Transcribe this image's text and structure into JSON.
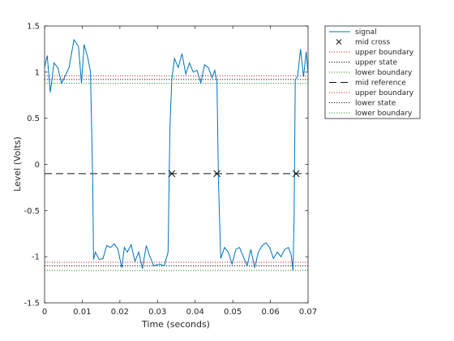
{
  "chart_data": {
    "type": "line",
    "xlabel": "Time (seconds)",
    "ylabel": "Level (Volts)",
    "xlim": [
      0,
      0.07
    ],
    "ylim": [
      -1.5,
      1.5
    ],
    "xticks": [
      0,
      0.01,
      0.02,
      0.03,
      0.04,
      0.05,
      0.06,
      0.07
    ],
    "xtick_labels": [
      "0",
      "0.01",
      "0.02",
      "0.03",
      "0.04",
      "0.05",
      "0.06",
      "0.07"
    ],
    "yticks": [
      -1.5,
      -1,
      -0.5,
      0,
      0.5,
      1,
      1.5
    ],
    "ytick_labels": [
      "-1.5",
      "-1",
      "-0.5",
      "0",
      "0.5",
      "1",
      "1.5"
    ],
    "grid": false,
    "legend_position": "outside-right",
    "colors": {
      "signal": "#0072bd",
      "upper_boundary": "#d62728",
      "upper_state": "#111111",
      "mid_reference": "#111111",
      "lower_boundary": "#2ca02c",
      "lower_state": "#111111"
    },
    "series": [
      {
        "name": "signal",
        "style": "solid",
        "x": [
          0,
          0.001,
          0.002,
          0.003,
          0.004,
          0.005,
          0.006,
          0.007,
          0.008,
          0.009,
          0.01,
          0.011,
          0.012,
          0.013,
          0.014,
          0.015,
          0.016,
          0.017,
          0.018,
          0.019,
          0.02,
          0.021,
          0.022,
          0.023,
          0.024,
          0.025,
          0.026,
          0.027,
          0.028,
          0.029,
          0.03,
          0.031,
          0.032,
          0.033,
          0.034,
          0.035,
          0.036,
          0.037,
          0.038,
          0.039,
          0.04,
          0.041,
          0.042,
          0.043,
          0.044,
          0.045,
          0.046,
          0.047,
          0.048,
          0.049,
          0.05,
          0.051,
          0.052,
          0.053,
          0.054,
          0.055,
          0.056,
          0.057,
          0.058,
          0.059,
          0.06,
          0.061,
          0.062,
          0.063,
          0.064,
          0.065,
          0.066,
          0.067,
          0.068,
          0.069,
          0.07
        ],
        "y": [
          1.0,
          1.18,
          0.8,
          1.1,
          1.05,
          0.88,
          1.0,
          1.1,
          1.35,
          1.28,
          0.88,
          1.3,
          1.15,
          -1.05,
          -0.95,
          -1.02,
          -1.0,
          -0.88,
          -0.9,
          -0.88,
          -1.1,
          -0.92,
          -0.95,
          -0.85,
          -1.05,
          -0.98,
          -1.12,
          -0.92,
          -1.0,
          -1.08,
          -1.1,
          -1.05,
          0.45,
          0.95,
          1.15,
          1.05,
          1.2,
          0.98,
          1.0,
          1.02,
          0.9,
          1.08,
          1.05,
          0.95,
          1.02,
          -0.8,
          -1.0,
          -1.05,
          -0.9,
          -0.95,
          -1.02,
          -0.92,
          -0.9,
          -1.0,
          -1.08,
          -0.98,
          -1.1,
          -0.95,
          -0.9,
          -0.85,
          -1.15,
          -1.05,
          0.95,
          0.92,
          1.2,
          1.05,
          0.96,
          0.98,
          1.0,
          0.98,
          0.97
        ],
        "curve_x": [
          0,
          0.0007,
          0.0015,
          0.0025,
          0.0035,
          0.0045,
          0.0055,
          0.0065,
          0.0078,
          0.009,
          0.0098,
          0.0105,
          0.0115,
          0.0122,
          0.0128,
          0.013,
          0.0135,
          0.0145,
          0.0155,
          0.0165,
          0.0175,
          0.0185,
          0.0195,
          0.0205,
          0.0212,
          0.022,
          0.023,
          0.024,
          0.025,
          0.026,
          0.027,
          0.028,
          0.029,
          0.0305,
          0.0318,
          0.0328,
          0.0333,
          0.0338,
          0.0345,
          0.0355,
          0.0365,
          0.0375,
          0.0385,
          0.0395,
          0.0405,
          0.0415,
          0.0425,
          0.0435,
          0.0445,
          0.0452,
          0.0458,
          0.0462,
          0.0468,
          0.0478,
          0.0488,
          0.0498,
          0.0508,
          0.0518,
          0.0528,
          0.0538,
          0.0548,
          0.0558,
          0.0568,
          0.0578,
          0.0588,
          0.0598,
          0.0608,
          0.0618,
          0.0628,
          0.0638,
          0.0648,
          0.0655,
          0.066,
          0.0663,
          0.0666,
          0.0672,
          0.068,
          0.0688,
          0.0695,
          0.07
        ],
        "curve_y": [
          1.05,
          1.18,
          0.78,
          1.1,
          1.05,
          0.88,
          0.96,
          1.05,
          1.35,
          1.28,
          0.88,
          1.3,
          1.15,
          1.0,
          -0.2,
          -1.03,
          -0.95,
          -1.03,
          -1.02,
          -0.88,
          -0.9,
          -0.86,
          -0.92,
          -1.12,
          -0.9,
          -0.95,
          -0.87,
          -1.05,
          -0.95,
          -1.13,
          -0.88,
          -1.0,
          -1.1,
          -1.08,
          -1.1,
          -0.95,
          0.4,
          0.92,
          1.15,
          1.05,
          1.2,
          0.98,
          1.1,
          1.0,
          1.02,
          0.88,
          1.08,
          1.05,
          0.94,
          1.02,
          0.9,
          -0.2,
          -1.02,
          -0.9,
          -0.95,
          -1.08,
          -0.92,
          -0.9,
          -1.0,
          -1.1,
          -0.92,
          -1.12,
          -0.95,
          -0.88,
          -0.85,
          -0.9,
          -1.02,
          -0.95,
          -1.0,
          -0.92,
          -0.9,
          -0.98,
          -1.15,
          -0.55,
          0.92,
          0.95,
          1.25,
          0.95,
          1.22,
          0.98
        ]
      },
      {
        "name": "mid cross",
        "style": "x-marker",
        "x": [
          0.0338,
          0.0458,
          0.0668
        ],
        "y": [
          -0.1,
          -0.1,
          -0.1
        ]
      },
      {
        "name": "upper boundary",
        "style": "dotted",
        "y_value": 0.96
      },
      {
        "name": "upper state",
        "style": "dotted",
        "y_value": 0.92
      },
      {
        "name": "lower boundary",
        "style": "dotted",
        "y_value": 0.88
      },
      {
        "name": "mid reference",
        "style": "dashed",
        "y_value": -0.1
      },
      {
        "name": "upper boundary",
        "style": "dotted",
        "y_value": -1.06
      },
      {
        "name": "lower state",
        "style": "dotted",
        "y_value": -1.1
      },
      {
        "name": "lower boundary",
        "style": "dotted",
        "y_value": -1.15
      }
    ],
    "legend": [
      "signal",
      "mid cross",
      "upper boundary",
      "upper state",
      "lower boundary",
      "mid reference",
      "upper boundary",
      "lower state",
      "lower boundary"
    ]
  }
}
